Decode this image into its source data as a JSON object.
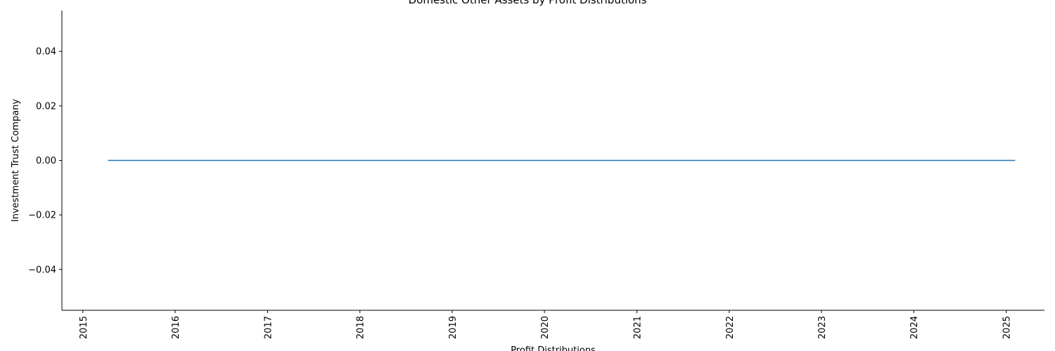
{
  "chart_data": {
    "type": "line",
    "title": "Domestic Other Assets by Profit Distributions",
    "xlabel": "Profit Distributions",
    "ylabel": "Investment Trust Company",
    "x_ticks": [
      "2015",
      "2016",
      "2017",
      "2018",
      "2019",
      "2020",
      "2021",
      "2022",
      "2023",
      "2024",
      "2025"
    ],
    "y_ticks": [
      "0.04",
      "0.02",
      "0.00",
      "−0.02",
      "−0.04"
    ],
    "xlim": [
      "2014-10-10",
      "2025-06-01"
    ],
    "ylim": [
      -0.055,
      0.055
    ],
    "grid": false,
    "series": [
      {
        "color": "#1f77b4",
        "points": [
          {
            "x": "2015-04-10",
            "y": 0
          },
          {
            "x": "2025-02-05",
            "y": 0
          }
        ]
      }
    ]
  }
}
